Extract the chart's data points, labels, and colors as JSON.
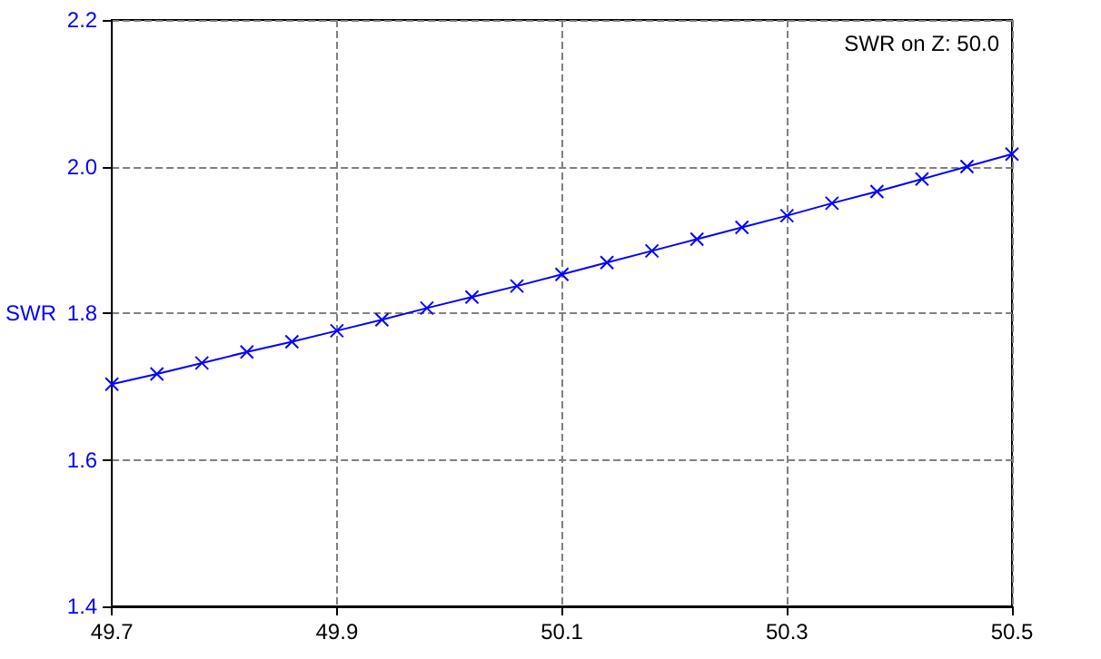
{
  "chart_data": {
    "type": "line",
    "ylabel": "SWR",
    "annotations": [
      "SWR on Z: 50.0"
    ],
    "x": [
      49.7,
      49.74,
      49.78,
      49.82,
      49.86,
      49.9,
      49.94,
      49.98,
      50.02,
      50.06,
      50.1,
      50.14,
      50.18,
      50.22,
      50.26,
      50.3,
      50.34,
      50.38,
      50.42,
      50.46,
      50.5
    ],
    "series": [
      {
        "color": "#0000ff",
        "values": [
          1.703,
          1.717,
          1.732,
          1.747,
          1.761,
          1.776,
          1.791,
          1.807,
          1.822,
          1.837,
          1.853,
          1.869,
          1.885,
          1.901,
          1.917,
          1.933,
          1.95,
          1.966,
          1.983,
          2.0,
          2.017
        ]
      }
    ],
    "xlim": [
      49.7,
      50.5
    ],
    "xticks": [
      49.7,
      49.9,
      50.1,
      50.3,
      50.5
    ],
    "ylim": [
      1.4,
      2.2
    ],
    "yticks": [
      1.4,
      1.6,
      1.8,
      {
        "value": 2,
        "label": "2.0"
      },
      2.2
    ],
    "grid": true,
    "marker": "cross",
    "line_style": "solid"
  }
}
